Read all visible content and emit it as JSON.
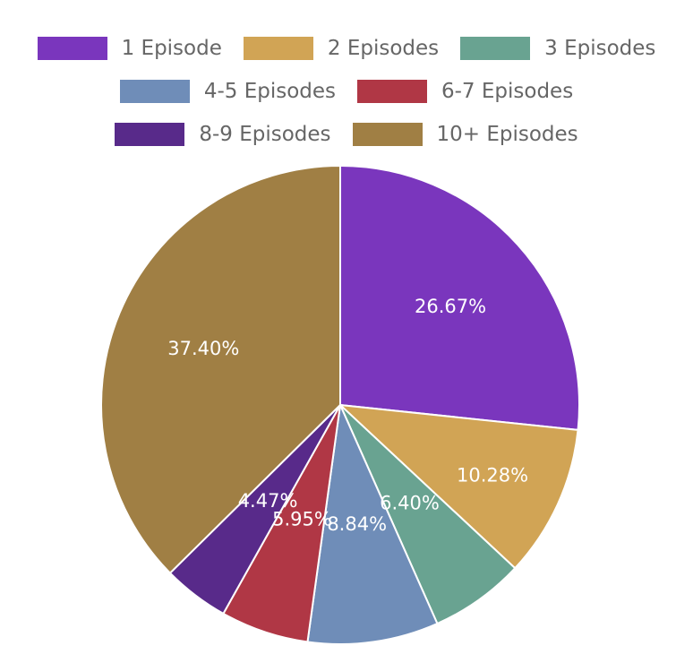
{
  "chart_data": {
    "type": "pie",
    "categories": [
      "1 Episode",
      "2 Episodes",
      "3 Episodes",
      "4-5 Episodes",
      "6-7 Episodes",
      "8-9 Episodes",
      "10+ Episodes"
    ],
    "values": [
      26.67,
      10.28,
      6.4,
      8.84,
      5.95,
      4.47,
      37.4
    ],
    "data_labels": [
      "26.67%",
      "10.28%",
      "6.40%",
      "8.84%",
      "5.95%",
      "4.47%",
      "37.40%"
    ],
    "colors": [
      "#7a36bd",
      "#d1a455",
      "#69a391",
      "#6f8db8",
      "#b03745",
      "#582a8a",
      "#a07f44"
    ],
    "legend_placement": "top",
    "legend_rows": [
      [
        0,
        1,
        2
      ],
      [
        3,
        4
      ],
      [
        5,
        6
      ]
    ]
  }
}
